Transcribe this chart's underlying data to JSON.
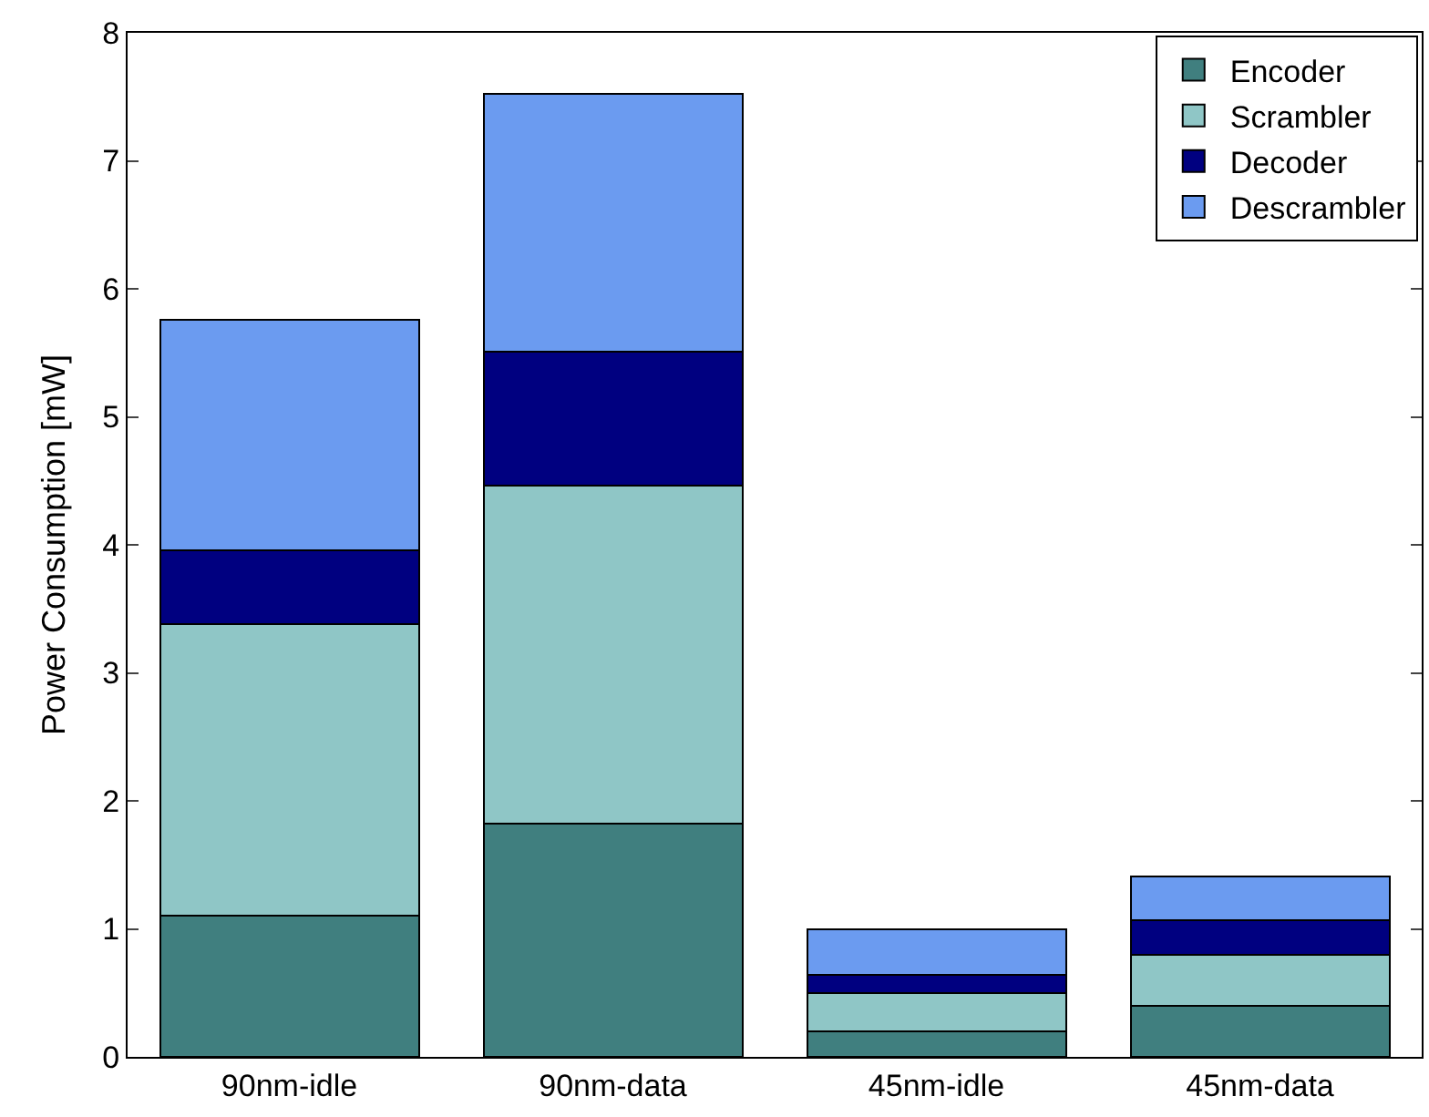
{
  "chart_data": {
    "type": "bar",
    "stacked": true,
    "ylabel": "Power Consumption [mW]",
    "categories": [
      "90nm-idle",
      "90nm-data",
      "45nm-idle",
      "45nm-data"
    ],
    "series": [
      {
        "name": "Encoder",
        "color": "#407f7f",
        "values": [
          1.1,
          1.82,
          0.2,
          0.4
        ]
      },
      {
        "name": "Scrambler",
        "color": "#8fc6c6",
        "values": [
          2.28,
          2.64,
          0.3,
          0.4
        ]
      },
      {
        "name": "Decoder",
        "color": "#000080",
        "values": [
          0.58,
          1.05,
          0.14,
          0.27
        ]
      },
      {
        "name": "Descrambler",
        "color": "#6b9bf0",
        "values": [
          1.8,
          2.01,
          0.36,
          0.34
        ]
      }
    ],
    "ylim": [
      0,
      8
    ],
    "yticks": [
      0,
      1,
      2,
      3,
      4,
      5,
      6,
      7,
      8
    ],
    "grid": false,
    "legend": "top right"
  }
}
